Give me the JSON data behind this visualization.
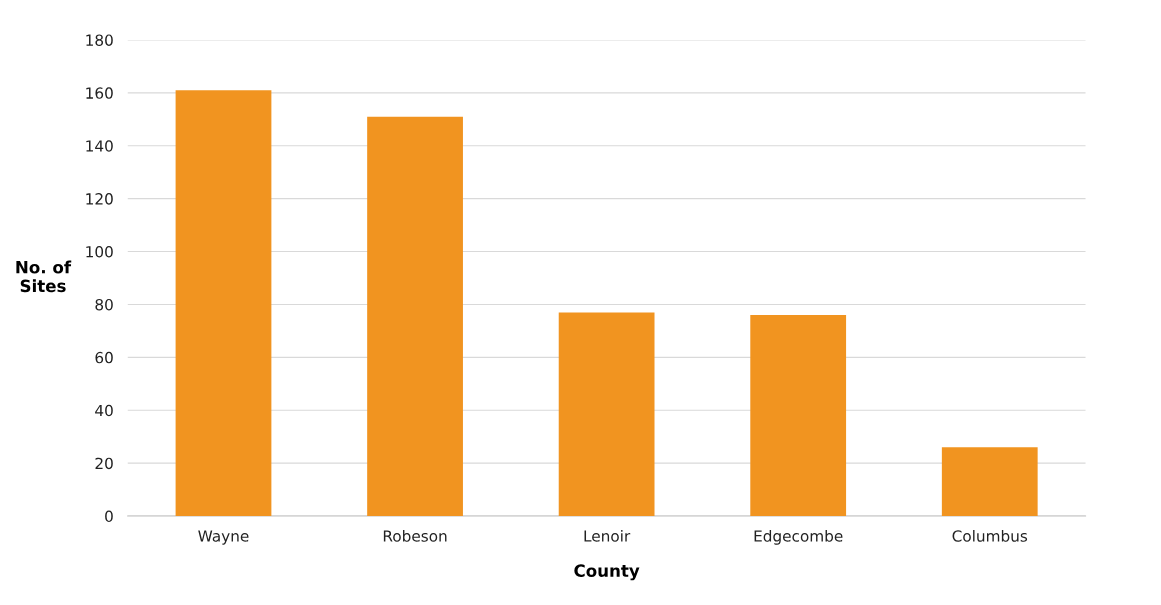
{
  "chart_data": {
    "type": "bar",
    "xlabel": "County",
    "ylabel": "No. of\nSites",
    "categories": [
      "Wayne",
      "Robeson",
      "Lenoir",
      "Edgecombe",
      "Columbus"
    ],
    "values": [
      161,
      151,
      77,
      76,
      26
    ],
    "color": "#f19420",
    "ylim": [
      0,
      180
    ],
    "yticks": [
      0,
      20,
      40,
      60,
      80,
      100,
      120,
      140,
      160,
      180
    ],
    "grid": "y",
    "legend": false
  }
}
